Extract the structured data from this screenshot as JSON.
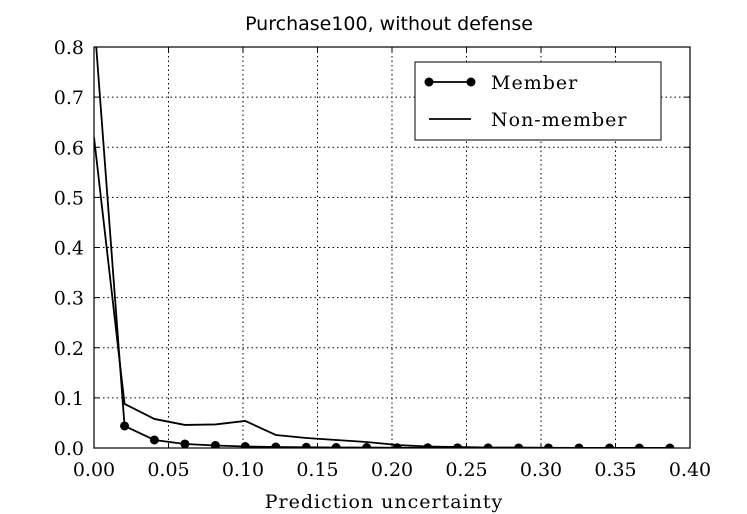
{
  "chart_data": {
    "type": "line",
    "title": "Purchase100, without defense",
    "xlabel": "Prediction uncertainty",
    "ylabel": "",
    "xlim": [
      0.0,
      0.4
    ],
    "ylim": [
      0.0,
      0.8
    ],
    "xticks": [
      0.0,
      0.05,
      0.1,
      0.15,
      0.2,
      0.25,
      0.3,
      0.35,
      0.4
    ],
    "xtick_labels": [
      "0.00",
      "0.05",
      "0.10",
      "0.15",
      "0.20",
      "0.25",
      "0.30",
      "0.35",
      "0.40"
    ],
    "yticks": [
      0.0,
      0.1,
      0.2,
      0.3,
      0.4,
      0.5,
      0.6,
      0.7,
      0.8
    ],
    "ytick_labels": [
      "0.0",
      "0.1",
      "0.2",
      "0.3",
      "0.4",
      "0.5",
      "0.6",
      "0.7",
      "0.8"
    ],
    "grid": true,
    "legend_position": "top-right",
    "series": [
      {
        "name": "Member",
        "marker": "circle",
        "color": "#000000",
        "x": [
          0.0,
          0.0205,
          0.0405,
          0.061,
          0.0815,
          0.1015,
          0.122,
          0.1425,
          0.1625,
          0.183,
          0.2035,
          0.224,
          0.244,
          0.2645,
          0.285,
          0.305,
          0.3255,
          0.346,
          0.366,
          0.3865
        ],
        "y": [
          0.86,
          0.044,
          0.016,
          0.008,
          0.005,
          0.003,
          0.002,
          0.0015,
          0.001,
          0.001,
          0.0005,
          0.0005,
          0.0003,
          0.0002,
          0.0001,
          0.0001,
          0.0001,
          0.0,
          0.0,
          0.0
        ]
      },
      {
        "name": "Non-member",
        "marker": "none",
        "color": "#000000",
        "x": [
          0.0,
          0.0205,
          0.0405,
          0.061,
          0.0815,
          0.1015,
          0.122,
          0.1425,
          0.1625,
          0.183,
          0.2035,
          0.224,
          0.244,
          0.2645,
          0.285,
          0.305,
          0.3255,
          0.346,
          0.366,
          0.3865
        ],
        "y": [
          0.62,
          0.088,
          0.058,
          0.046,
          0.047,
          0.054,
          0.026,
          0.02,
          0.016,
          0.012,
          0.006,
          0.003,
          0.002,
          0.001,
          0.001,
          0.0005,
          0.0003,
          0.0002,
          0.0001,
          0.0001
        ]
      }
    ]
  }
}
